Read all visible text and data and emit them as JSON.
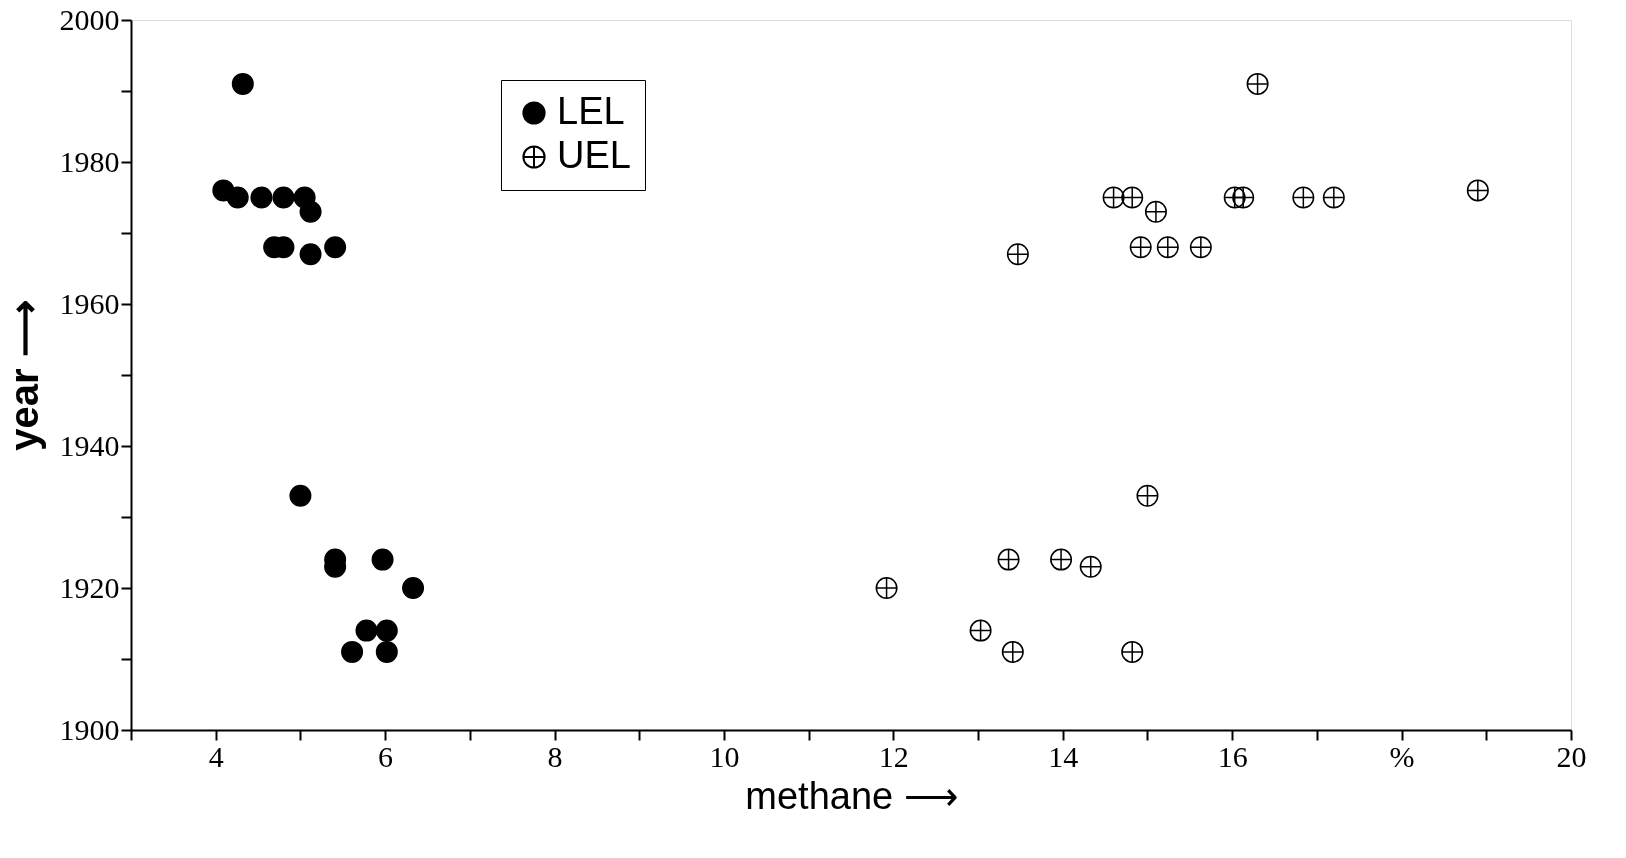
{
  "chart_data": {
    "type": "scatter",
    "xlabel": "methane ⟶",
    "ylabel": "year ⟶",
    "xlim": [
      3,
      20
    ],
    "ylim": [
      1900,
      2000
    ],
    "xticks": [
      {
        "value": 3,
        "label": null
      },
      4,
      {
        "value": 5,
        "label": null
      },
      6,
      {
        "value": 7,
        "label": null
      },
      8,
      {
        "value": 9,
        "label": null
      },
      10,
      {
        "value": 11,
        "label": null
      },
      12,
      {
        "value": 13,
        "label": null
      },
      14,
      {
        "value": 15,
        "label": null
      },
      16,
      {
        "value": 17,
        "label": null
      },
      {
        "value": 18,
        "label": "%"
      },
      {
        "value": 19,
        "label": null
      },
      20
    ],
    "yticks": [
      1900,
      {
        "value": 1910,
        "label": null
      },
      1920,
      {
        "value": 1930,
        "label": null
      },
      1940,
      {
        "value": 1950,
        "label": null
      },
      1960,
      {
        "value": 1970,
        "label": null
      },
      1980,
      {
        "value": 1990,
        "label": null
      },
      2000
    ],
    "grid": false,
    "legend": "top left",
    "series": [
      {
        "name": "LEL",
        "color": "#000000",
        "marker": "circle",
        "x": [
          4.32,
          4.09,
          4.26,
          4.54,
          4.8,
          5.05,
          5.12,
          4.69,
          4.8,
          5.12,
          5.41,
          5.0,
          5.41,
          5.41,
          5.97,
          6.33,
          5.78,
          6.02,
          5.61,
          6.02
        ],
        "values": [
          1991,
          1976,
          1975,
          1975,
          1975,
          1975,
          1973,
          1968,
          1968,
          1967,
          1968,
          1933,
          1924,
          1923,
          1924,
          1920,
          1914,
          1914,
          1911,
          1911
        ]
      },
      {
        "name": "UEL",
        "color": "#000000",
        "marker": "cross",
        "x": [
          16.3,
          18.9,
          14.6,
          14.82,
          16.03,
          16.13,
          16.84,
          17.2,
          15.1,
          13.47,
          14.92,
          15.24,
          15.63,
          15.0,
          13.36,
          13.98,
          14.33,
          11.92,
          13.03,
          13.41,
          14.82
        ],
        "values": [
          1991,
          1976,
          1975,
          1975,
          1975,
          1975,
          1975,
          1975,
          1973,
          1967,
          1968,
          1968,
          1968,
          1933,
          1924,
          1924,
          1923,
          1920,
          1914,
          1911,
          1911
        ]
      }
    ]
  }
}
